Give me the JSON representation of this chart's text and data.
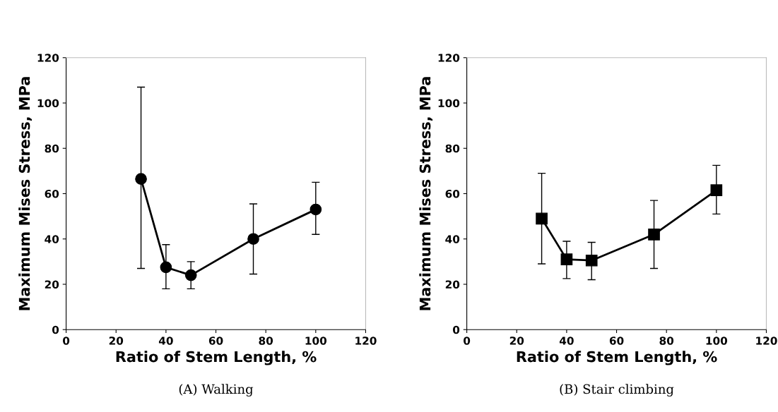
{
  "chart_data": [
    {
      "type": "line",
      "xlabel": "Ratio of Stem Length, %",
      "ylabel": "Maximum Mises Stress, MPa",
      "annotations": [
        "(A) Walking"
      ],
      "x": [
        30,
        40,
        50,
        75,
        100
      ],
      "marker": "circle",
      "series": [
        {
          "color": "#000000",
          "values": [
            66.5,
            27.5,
            24,
            40,
            53
          ],
          "errors": [
            [
              27,
              107
            ],
            [
              18,
              37.5
            ],
            [
              18,
              30
            ],
            [
              24.5,
              55.5
            ],
            [
              42,
              65
            ]
          ]
        }
      ],
      "xlim": [
        0,
        120
      ],
      "xticks": [
        0,
        20,
        40,
        60,
        80,
        100,
        120
      ],
      "ylim": [
        0,
        120
      ],
      "yticks": [
        0,
        20,
        40,
        60,
        80,
        100,
        120
      ],
      "grid": false
    },
    {
      "type": "line",
      "xlabel": "Ratio of Stem Length, %",
      "ylabel": "Maximum Mises Stress, MPa",
      "annotations": [
        "(B) Stair climbing"
      ],
      "x": [
        30,
        40,
        50,
        75,
        100
      ],
      "marker": "square",
      "series": [
        {
          "color": "#000000",
          "values": [
            49,
            31,
            30.5,
            42,
            61.5
          ],
          "errors": [
            [
              29,
              69
            ],
            [
              22.5,
              39
            ],
            [
              22,
              38.5
            ],
            [
              27,
              57
            ],
            [
              51,
              72.5
            ]
          ]
        }
      ],
      "xlim": [
        0,
        120
      ],
      "xticks": [
        0,
        20,
        40,
        60,
        80,
        100,
        120
      ],
      "ylim": [
        0,
        120
      ],
      "yticks": [
        0,
        20,
        40,
        60,
        80,
        100,
        120
      ],
      "grid": false
    }
  ]
}
